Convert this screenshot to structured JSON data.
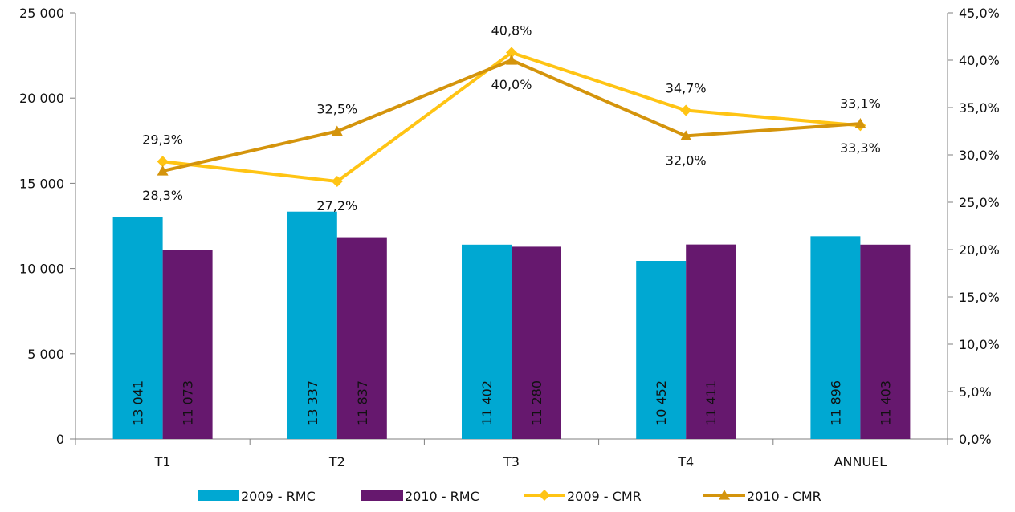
{
  "chart_data": {
    "type": "bar",
    "categories": [
      "T1",
      "T2",
      "T3",
      "T4",
      "ANNUEL"
    ],
    "y_left": {
      "min": 0,
      "max": 25000,
      "step": 5000,
      "tick_labels": [
        "0",
        "5 000",
        "10 000",
        "15 000",
        "20 000",
        "25 000"
      ]
    },
    "y_right": {
      "min": 0,
      "max": 45,
      "step": 5,
      "tick_labels": [
        "0,0%",
        "5,0%",
        "10,0%",
        "15,0%",
        "20,0%",
        "25,0%",
        "30,0%",
        "35,0%",
        "40,0%",
        "45,0%"
      ]
    },
    "bar_series": [
      {
        "name": "2009 - RMC",
        "color": "#00A8D2",
        "values": [
          13041,
          13337,
          11402,
          10452,
          11896
        ],
        "labels": [
          "13 041",
          "13 337",
          "11 402",
          "10 452",
          "11 896"
        ]
      },
      {
        "name": "2010 - RMC",
        "color": "#66186E",
        "values": [
          11073,
          11837,
          11280,
          11411,
          11403
        ],
        "labels": [
          "11 073",
          "11 837",
          "11 280",
          "11 411",
          "11 403"
        ]
      }
    ],
    "line_series": [
      {
        "name": "2009 - CMR",
        "color": "#FFC414",
        "marker": "diamond",
        "values": [
          29.3,
          27.2,
          40.8,
          34.7,
          33.1
        ],
        "labels": [
          "29,3%",
          "27,2%",
          "40,8%",
          "34,7%",
          "33,1%"
        ],
        "label_positions": [
          "above",
          "below",
          "above",
          "above",
          "above"
        ]
      },
      {
        "name": "2010 - CMR",
        "color": "#D4940C",
        "marker": "triangle",
        "values": [
          28.3,
          32.5,
          40.0,
          32.0,
          33.3
        ],
        "labels": [
          "28,3%",
          "32,5%",
          "40,0%",
          "32,0%",
          "33,3%"
        ],
        "label_positions": [
          "below",
          "above",
          "below",
          "below",
          "below"
        ]
      }
    ],
    "legend": [
      {
        "label": "2009 - RMC",
        "kind": "bar",
        "color": "#00A8D2"
      },
      {
        "label": "2010 - RMC",
        "kind": "bar",
        "color": "#66186E"
      },
      {
        "label": "2009 - CMR",
        "kind": "line",
        "color": "#FFC414",
        "marker": "diamond"
      },
      {
        "label": "2010 - CMR",
        "kind": "line",
        "color": "#D4940C",
        "marker": "triangle"
      }
    ],
    "legend_position": "bottom",
    "grid": false
  }
}
